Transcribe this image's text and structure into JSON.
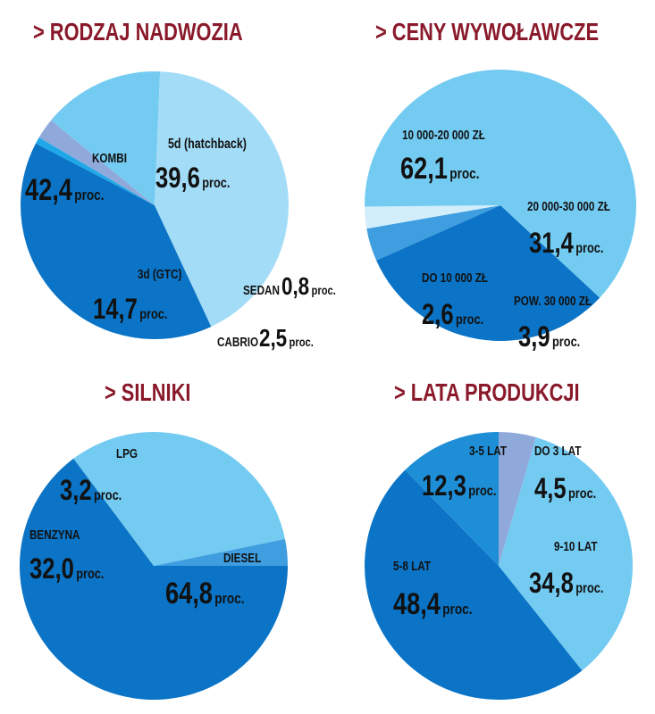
{
  "chart_data": [
    {
      "type": "pie",
      "title": "> RODZAJ NADWOZIA",
      "unit": "proc.",
      "slices": [
        {
          "name": "5d (hatchback)",
          "value": 39.6,
          "display": "39,6",
          "color": "#0b74c6"
        },
        {
          "name": "SEDAN",
          "value": 0.8,
          "display": "0,8",
          "color": "#1fa8e8"
        },
        {
          "name": "CABRIO",
          "value": 2.5,
          "display": "2,5",
          "color": "#8fa9db"
        },
        {
          "name": "3d (GTC)",
          "value": 14.7,
          "display": "14,7",
          "color": "#74cbf2"
        },
        {
          "name": "KOMBI",
          "value": 42.4,
          "display": "42,4",
          "color": "#a3dcf7"
        }
      ]
    },
    {
      "type": "pie",
      "title": "> CENY WYWOŁAWCZE",
      "unit": "proc.",
      "slices": [
        {
          "name": "20 000-30 000 ZŁ",
          "value": 31.4,
          "display": "31,4",
          "color": "#0b74c6"
        },
        {
          "name": "POW. 30 000 ZŁ",
          "value": 3.9,
          "display": "3,9",
          "color": "#3f9ee0"
        },
        {
          "name": "DO 10 000 ZŁ",
          "value": 2.6,
          "display": "2,6",
          "color": "#d2eefb"
        },
        {
          "name": "10 000-20 000 ZŁ",
          "value": 62.1,
          "display": "62,1",
          "color": "#74cbf2"
        }
      ]
    },
    {
      "type": "pie",
      "title": "> SILNIKI",
      "unit": "proc.",
      "slices": [
        {
          "name": "DIESEL",
          "value": 64.8,
          "display": "64,8",
          "color": "#0b74c6"
        },
        {
          "name": "BENZYNA",
          "value": 32.0,
          "display": "32,0",
          "color": "#74cbf2"
        },
        {
          "name": "LPG",
          "value": 3.2,
          "display": "3,2",
          "color": "#3f9ee0"
        }
      ]
    },
    {
      "type": "pie",
      "title": "> LATA PRODUKCJI",
      "unit": "proc.",
      "slices": [
        {
          "name": "DO 3 LAT",
          "value": 4.5,
          "display": "4,5",
          "color": "#8fa9db"
        },
        {
          "name": "9-10 LAT",
          "value": 34.8,
          "display": "34,8",
          "color": "#74cbf2"
        },
        {
          "name": "5-8 LAT",
          "value": 48.4,
          "display": "48,4",
          "color": "#0b74c6"
        },
        {
          "name": "3-5 LAT",
          "value": 12.3,
          "display": "12,3",
          "color": "#1e8fd6"
        }
      ]
    }
  ]
}
